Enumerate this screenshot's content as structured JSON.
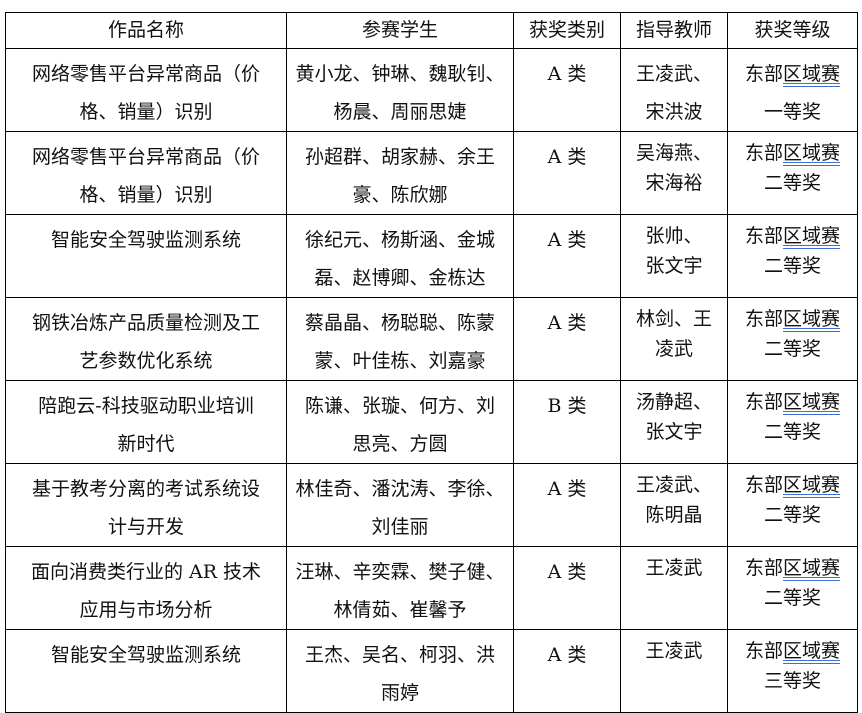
{
  "headers": [
    "作品名称",
    "参赛学生",
    "获奖类别",
    "指导教师",
    "获奖等级"
  ],
  "rows": [
    {
      "work": [
        "网络零售平台异常商品（价",
        "格、销量）识别"
      ],
      "students": [
        "黄小龙、钟琳、魏耿钊、",
        "杨晨、周丽思婕"
      ],
      "category": "A 类",
      "teachers": [
        "王凌武、",
        "宋洪波"
      ],
      "award": {
        "prefix": "东部",
        "underlined": "区域赛",
        "level": "一等奖"
      }
    },
    {
      "work": [
        "网络零售平台异常商品（价",
        "格、销量）识别"
      ],
      "students": [
        "孙超群、胡家赫、余王",
        "豪、陈欣娜"
      ],
      "category": "A 类",
      "teachers": [
        "吴海燕、",
        "宋海裕"
      ],
      "award": {
        "prefix": "东部",
        "underlined": "区域赛",
        "level": "二等奖"
      }
    },
    {
      "work": [
        "智能安全驾驶监测系统"
      ],
      "students": [
        "徐纪元、杨斯涵、金城",
        "磊、赵博卿、金栋达"
      ],
      "category": "A 类",
      "teachers": [
        "张帅、",
        "张文宇"
      ],
      "award": {
        "prefix": "东部",
        "underlined": "区域赛",
        "level": "二等奖"
      }
    },
    {
      "work": [
        "钢铁冶炼产品质量检测及工",
        "艺参数优化系统"
      ],
      "students": [
        "蔡晶晶、杨聪聪、陈蒙",
        "蒙、叶佳栋、刘嘉豪"
      ],
      "category": "A 类",
      "teachers": [
        "林剑、王",
        "凌武"
      ],
      "award": {
        "prefix": "东部",
        "underlined": "区域赛",
        "level": "二等奖"
      }
    },
    {
      "work": [
        "陪跑云-科技驱动职业培训",
        "新时代"
      ],
      "students": [
        "陈谦、张璇、何方、刘",
        "思亮、方圆"
      ],
      "category": "B 类",
      "teachers": [
        "汤静超、",
        "张文宇"
      ],
      "award": {
        "prefix": "东部",
        "underlined": "区域赛",
        "level": "二等奖"
      }
    },
    {
      "work": [
        "基于教考分离的考试系统设",
        "计与开发"
      ],
      "students": [
        "林佳奇、潘沈涛、李徐、",
        "刘佳丽"
      ],
      "category": "A 类",
      "teachers": [
        "王凌武、",
        "陈明晶"
      ],
      "award": {
        "prefix": "东部",
        "underlined": "区域赛",
        "level": "二等奖"
      }
    },
    {
      "work": [
        "面向消费类行业的 AR 技术",
        "应用与市场分析"
      ],
      "students": [
        "汪琳、辛奕霖、樊子健、",
        "林倩茹、崔馨予"
      ],
      "category": "A 类",
      "teachers": [
        "王凌武"
      ],
      "award": {
        "prefix": "东部",
        "underlined": "区域赛",
        "level": "二等奖"
      }
    },
    {
      "work": [
        "智能安全驾驶监测系统"
      ],
      "students": [
        "王杰、吴名、柯羽、洪",
        "雨婷"
      ],
      "category": "A 类",
      "teachers": [
        "王凌武"
      ],
      "award": {
        "prefix": "东部",
        "underlined": "区域赛",
        "level": "三等奖"
      }
    }
  ]
}
